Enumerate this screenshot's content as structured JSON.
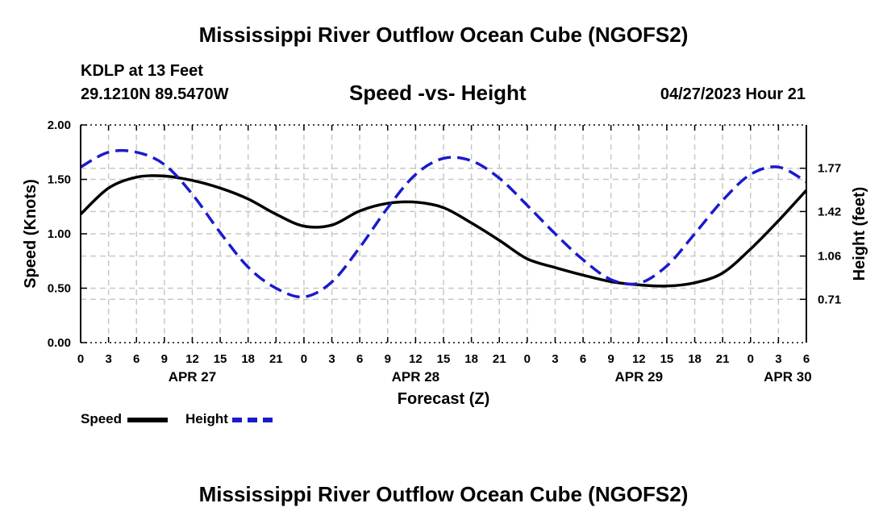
{
  "chart_data": {
    "type": "line",
    "title": "Mississippi River Outflow Ocean Cube (NGOFS2)",
    "footer_title": "Mississippi River Outflow Ocean Cube (NGOFS2)",
    "station": "KDLP at 13 Feet",
    "location": "29.1210N  89.5470W",
    "subtitle": "Speed -vs- Height",
    "timestamp": "04/27/2023 Hour 21",
    "xlabel": "Forecast (Z)",
    "ylabel_left": "Speed (Knots)",
    "ylabel_right": "Height (feet)",
    "x_unit": "hours since Apr 27 00Z",
    "xlim": [
      0,
      78
    ],
    "ylim_left": [
      0,
      2
    ],
    "ylim_right": [
      0.36,
      2.12
    ],
    "x_ticks": [
      0,
      3,
      6,
      9,
      12,
      15,
      18,
      21,
      24,
      27,
      30,
      33,
      36,
      39,
      42,
      45,
      48,
      51,
      54,
      57,
      60,
      63,
      66,
      69,
      72,
      75,
      78
    ],
    "x_tick_labels": [
      "0",
      "3",
      "6",
      "9",
      "12",
      "15",
      "18",
      "21",
      "0",
      "3",
      "6",
      "9",
      "12",
      "15",
      "18",
      "21",
      "0",
      "3",
      "6",
      "9",
      "12",
      "15",
      "18",
      "21",
      "0",
      "3",
      "6"
    ],
    "date_labels": [
      {
        "x": 12,
        "label": "APR 27"
      },
      {
        "x": 36,
        "label": "APR 28"
      },
      {
        "x": 60,
        "label": "APR 29"
      },
      {
        "x": 76,
        "label": "APR 30"
      }
    ],
    "y_ticks_left": [
      "0.00",
      "0.50",
      "1.00",
      "1.50",
      "2.00"
    ],
    "y_ticks_left_values": [
      0,
      0.5,
      1.0,
      1.5,
      2.0
    ],
    "y_ticks_right": [
      "0.71",
      "1.06",
      "1.42",
      "1.77"
    ],
    "y_ticks_right_values": [
      0.71,
      1.06,
      1.42,
      1.77
    ],
    "legend": [
      {
        "name": "Speed",
        "color": "#000000",
        "style": "solid"
      },
      {
        "name": "Height",
        "color": "#1a1acc",
        "style": "dashed"
      }
    ],
    "series": [
      {
        "name": "Speed",
        "axis": "left",
        "color": "#000000",
        "x": [
          0,
          3,
          6,
          9,
          12,
          15,
          18,
          21,
          24,
          27,
          30,
          33,
          36,
          39,
          42,
          45,
          48,
          51,
          54,
          57,
          60,
          63,
          66,
          69,
          72,
          75,
          78
        ],
        "values": [
          1.18,
          1.42,
          1.52,
          1.53,
          1.49,
          1.42,
          1.32,
          1.18,
          1.07,
          1.08,
          1.21,
          1.28,
          1.29,
          1.24,
          1.1,
          0.94,
          0.77,
          0.69,
          0.62,
          0.56,
          0.53,
          0.52,
          0.55,
          0.64,
          0.86,
          1.12,
          1.4
        ]
      },
      {
        "name": "Height",
        "axis": "right",
        "color": "#1a1acc",
        "x": [
          0,
          3,
          6,
          9,
          12,
          15,
          18,
          21,
          24,
          27,
          30,
          33,
          36,
          39,
          42,
          45,
          48,
          51,
          54,
          57,
          60,
          63,
          66,
          69,
          72,
          75,
          78
        ],
        "values": [
          1.78,
          1.9,
          1.9,
          1.8,
          1.56,
          1.25,
          0.97,
          0.8,
          0.73,
          0.85,
          1.13,
          1.45,
          1.72,
          1.85,
          1.83,
          1.69,
          1.47,
          1.24,
          1.03,
          0.87,
          0.84,
          0.98,
          1.24,
          1.51,
          1.72,
          1.78,
          1.66
        ]
      }
    ]
  }
}
